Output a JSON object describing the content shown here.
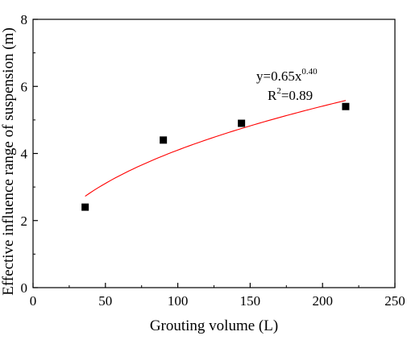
{
  "chart_data": {
    "type": "scatter",
    "title": "",
    "xlabel": "Grouting volume (L)",
    "ylabel": "Effective influence range of suspension (m)",
    "xlim": [
      0,
      250
    ],
    "ylim": [
      0,
      8
    ],
    "x_ticks": [
      0,
      50,
      100,
      150,
      200,
      250
    ],
    "y_ticks": [
      0,
      2,
      4,
      6,
      8
    ],
    "grid": false,
    "legend": "none",
    "series": [
      {
        "type": "scatter",
        "marker": "square",
        "color": "#000000",
        "x": [
          36,
          90,
          144,
          216
        ],
        "y": [
          2.4,
          4.4,
          4.9,
          5.4
        ]
      }
    ],
    "fit": {
      "type": "power",
      "a": 0.65,
      "b": 0.4,
      "x_range": [
        36,
        216
      ],
      "color": "#ff0000",
      "equation": {
        "base": "y=0.65x",
        "exponent": "0.40"
      },
      "r2": {
        "base": "R",
        "exponent": "2",
        "value": "=0.89"
      }
    }
  }
}
